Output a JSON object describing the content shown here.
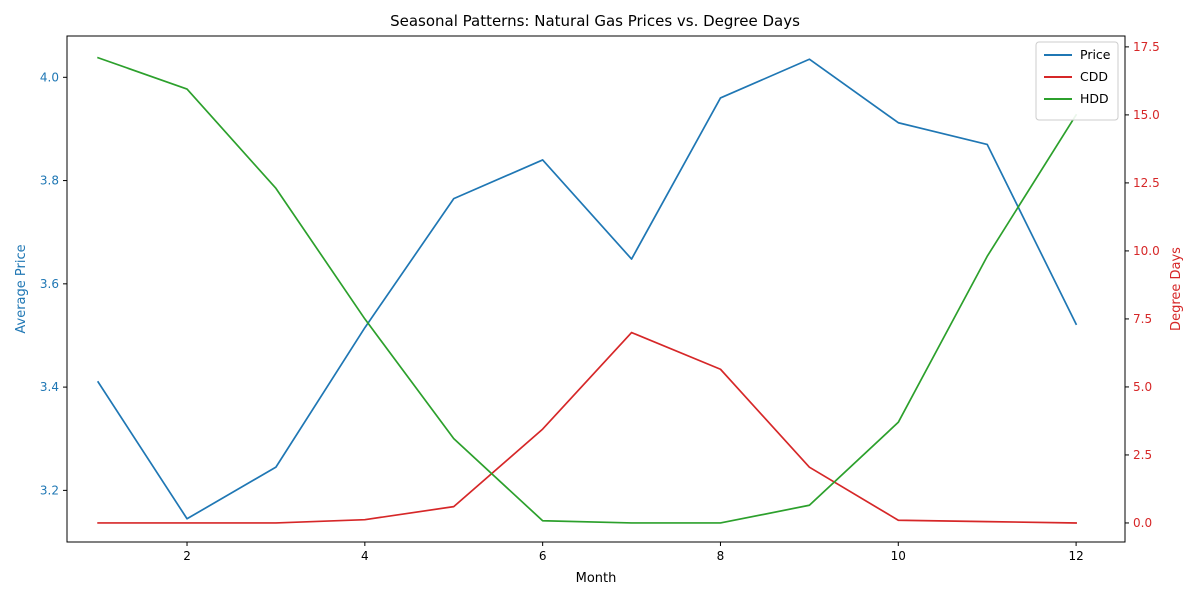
{
  "chart_data": {
    "type": "line",
    "title": "Seasonal Patterns: Natural Gas Prices vs. Degree Days",
    "xlabel": "Month",
    "ylabel_left": "Average Price",
    "ylabel_right": "Degree Days",
    "xlim": [
      0.65,
      12.55
    ],
    "ylim_left": [
      3.1,
      4.08
    ],
    "ylim_right": [
      -0.7,
      17.9
    ],
    "x_ticks": [
      "2",
      "4",
      "6",
      "8",
      "10",
      "12"
    ],
    "y_left_ticks": [
      "3.2",
      "3.4",
      "3.6",
      "3.8",
      "4.0"
    ],
    "y_right_ticks": [
      "0.0",
      "2.5",
      "5.0",
      "7.5",
      "10.0",
      "12.5",
      "15.0",
      "17.5"
    ],
    "x": [
      1,
      2,
      3,
      4,
      5,
      6,
      7,
      8,
      9,
      10,
      11,
      12
    ],
    "series": [
      {
        "name": "Price",
        "axis": "left",
        "color": "#1f77b4",
        "values": [
          3.41,
          3.145,
          3.245,
          3.515,
          3.765,
          3.84,
          3.648,
          3.96,
          4.035,
          3.912,
          3.87,
          3.522
        ]
      },
      {
        "name": "CDD",
        "axis": "right",
        "color": "#d62728",
        "values": [
          0.0,
          0.0,
          0.0,
          0.12,
          0.6,
          3.45,
          7.0,
          5.65,
          2.05,
          0.1,
          0.05,
          0.0
        ]
      },
      {
        "name": "HDD",
        "axis": "right",
        "color": "#2ca02c",
        "values": [
          17.1,
          15.95,
          12.3,
          7.5,
          3.1,
          0.08,
          0.0,
          0.0,
          0.65,
          3.7,
          9.8,
          15.0
        ]
      }
    ],
    "legend_position": "top-right",
    "left_axis_color": "#1f77b4",
    "right_axis_color": "#d62728"
  }
}
